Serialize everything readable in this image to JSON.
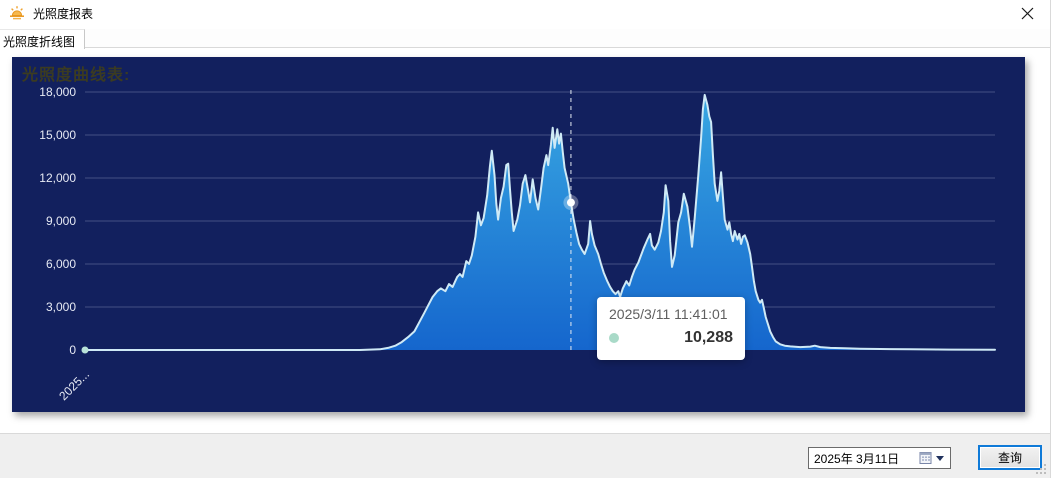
{
  "window": {
    "title": "光照度报表"
  },
  "tabs": [
    {
      "label": "光照度折线图",
      "selected": true
    }
  ],
  "chart": {
    "panel_title": "光照度曲线表:",
    "background": "#12205e",
    "title_color": "#3b3b21"
  },
  "tooltip": {
    "datetime": "2025/3/11 11:41:01",
    "value_label": "10,288"
  },
  "footer": {
    "date_value": "2025年  3月11日",
    "query_label": "查询"
  },
  "chart_data": {
    "type": "area",
    "title": "光照度曲线表:",
    "x_axis": {
      "visible_label": "2025...",
      "label_rotation": -45
    },
    "y_axis": {
      "min": 0,
      "max": 18000,
      "tick_step": 3000,
      "ticks": [
        "0",
        "3,000",
        "6,000",
        "9,000",
        "12,000",
        "15,000",
        "18,000"
      ]
    },
    "grid": true,
    "style": {
      "area_top": "#38a7e2",
      "area_bottom": "#1566cd",
      "line": "#cfeaf6",
      "grid_line": "rgba(186,196,222,0.30)",
      "axis_text": "#e7eaf4",
      "hover_line": "#e3e9f2",
      "marker": "#ffffff",
      "start_dot": "#b9e2d8"
    },
    "hover": {
      "x_fraction": 0.534,
      "time": "2025/3/11 11:41:01",
      "value": 10288
    },
    "series": [
      {
        "name": "光照度",
        "points": [
          [
            0.0,
            0
          ],
          [
            0.06,
            0
          ],
          [
            0.126,
            0
          ],
          [
            0.2,
            0
          ],
          [
            0.27,
            0
          ],
          [
            0.302,
            0
          ],
          [
            0.324,
            50
          ],
          [
            0.333,
            150
          ],
          [
            0.341,
            300
          ],
          [
            0.348,
            550
          ],
          [
            0.355,
            900
          ],
          [
            0.362,
            1300
          ],
          [
            0.367,
            1900
          ],
          [
            0.373,
            2600
          ],
          [
            0.377,
            3100
          ],
          [
            0.382,
            3700
          ],
          [
            0.387,
            4100
          ],
          [
            0.391,
            4300
          ],
          [
            0.396,
            4100
          ],
          [
            0.4,
            4600
          ],
          [
            0.404,
            4400
          ],
          [
            0.409,
            5100
          ],
          [
            0.412,
            5300
          ],
          [
            0.415,
            5100
          ],
          [
            0.419,
            6200
          ],
          [
            0.422,
            6000
          ],
          [
            0.425,
            6600
          ],
          [
            0.429,
            7900
          ],
          [
            0.432,
            9600
          ],
          [
            0.435,
            8700
          ],
          [
            0.438,
            9200
          ],
          [
            0.442,
            10800
          ],
          [
            0.445,
            12800
          ],
          [
            0.447,
            13900
          ],
          [
            0.45,
            12200
          ],
          [
            0.452,
            10200
          ],
          [
            0.454,
            9100
          ],
          [
            0.457,
            10600
          ],
          [
            0.46,
            11400
          ],
          [
            0.463,
            12900
          ],
          [
            0.465,
            13000
          ],
          [
            0.467,
            11200
          ],
          [
            0.469,
            9600
          ],
          [
            0.471,
            8300
          ],
          [
            0.475,
            9100
          ],
          [
            0.478,
            10100
          ],
          [
            0.481,
            11600
          ],
          [
            0.484,
            12200
          ],
          [
            0.487,
            11100
          ],
          [
            0.489,
            10300
          ],
          [
            0.492,
            11900
          ],
          [
            0.495,
            10600
          ],
          [
            0.498,
            9800
          ],
          [
            0.501,
            11200
          ],
          [
            0.504,
            12700
          ],
          [
            0.507,
            13600
          ],
          [
            0.509,
            12900
          ],
          [
            0.512,
            14300
          ],
          [
            0.514,
            15500
          ],
          [
            0.516,
            14100
          ],
          [
            0.519,
            15400
          ],
          [
            0.521,
            14400
          ],
          [
            0.523,
            15100
          ],
          [
            0.525,
            13800
          ],
          [
            0.527,
            12700
          ],
          [
            0.531,
            11600
          ],
          [
            0.534,
            10288
          ],
          [
            0.537,
            9100
          ],
          [
            0.54,
            8200
          ],
          [
            0.543,
            7400
          ],
          [
            0.546,
            7000
          ],
          [
            0.549,
            6700
          ],
          [
            0.553,
            7400
          ],
          [
            0.555,
            9000
          ],
          [
            0.557,
            8100
          ],
          [
            0.56,
            7300
          ],
          [
            0.564,
            6700
          ],
          [
            0.567,
            6000
          ],
          [
            0.57,
            5400
          ],
          [
            0.574,
            4800
          ],
          [
            0.577,
            4400
          ],
          [
            0.58,
            4100
          ],
          [
            0.583,
            3900
          ],
          [
            0.586,
            4100
          ],
          [
            0.588,
            3700
          ],
          [
            0.591,
            4300
          ],
          [
            0.595,
            4800
          ],
          [
            0.598,
            4500
          ],
          [
            0.601,
            5100
          ],
          [
            0.604,
            5600
          ],
          [
            0.608,
            6100
          ],
          [
            0.611,
            6600
          ],
          [
            0.614,
            7100
          ],
          [
            0.618,
            7700
          ],
          [
            0.621,
            8100
          ],
          [
            0.623,
            7300
          ],
          [
            0.626,
            7000
          ],
          [
            0.63,
            7500
          ],
          [
            0.633,
            8300
          ],
          [
            0.636,
            9600
          ],
          [
            0.638,
            11500
          ],
          [
            0.641,
            10400
          ],
          [
            0.643,
            7600
          ],
          [
            0.645,
            5800
          ],
          [
            0.648,
            6600
          ],
          [
            0.652,
            8900
          ],
          [
            0.655,
            9600
          ],
          [
            0.658,
            10900
          ],
          [
            0.662,
            10000
          ],
          [
            0.665,
            8500
          ],
          [
            0.667,
            7200
          ],
          [
            0.67,
            9200
          ],
          [
            0.674,
            12200
          ],
          [
            0.677,
            14800
          ],
          [
            0.679,
            16800
          ],
          [
            0.681,
            17800
          ],
          [
            0.684,
            17100
          ],
          [
            0.686,
            16300
          ],
          [
            0.688,
            15900
          ],
          [
            0.69,
            13600
          ],
          [
            0.692,
            11600
          ],
          [
            0.695,
            10400
          ],
          [
            0.697,
            11100
          ],
          [
            0.699,
            12400
          ],
          [
            0.701,
            10700
          ],
          [
            0.703,
            9100
          ],
          [
            0.706,
            8400
          ],
          [
            0.708,
            8900
          ],
          [
            0.71,
            8100
          ],
          [
            0.712,
            7600
          ],
          [
            0.714,
            8300
          ],
          [
            0.717,
            7700
          ],
          [
            0.719,
            8100
          ],
          [
            0.721,
            7400
          ],
          [
            0.723,
            7900
          ],
          [
            0.725,
            8000
          ],
          [
            0.728,
            7500
          ],
          [
            0.731,
            6700
          ],
          [
            0.733,
            5800
          ],
          [
            0.735,
            4800
          ],
          [
            0.737,
            4100
          ],
          [
            0.74,
            3500
          ],
          [
            0.742,
            3300
          ],
          [
            0.744,
            3500
          ],
          [
            0.746,
            2900
          ],
          [
            0.748,
            2300
          ],
          [
            0.751,
            1700
          ],
          [
            0.753,
            1300
          ],
          [
            0.756,
            900
          ],
          [
            0.759,
            600
          ],
          [
            0.764,
            400
          ],
          [
            0.769,
            300
          ],
          [
            0.775,
            250
          ],
          [
            0.786,
            200
          ],
          [
            0.797,
            240
          ],
          [
            0.802,
            300
          ],
          [
            0.808,
            200
          ],
          [
            0.819,
            150
          ],
          [
            0.835,
            120
          ],
          [
            0.852,
            90
          ],
          [
            0.874,
            70
          ],
          [
            0.907,
            50
          ],
          [
            0.951,
            30
          ],
          [
            1.0,
            20
          ]
        ]
      }
    ]
  }
}
